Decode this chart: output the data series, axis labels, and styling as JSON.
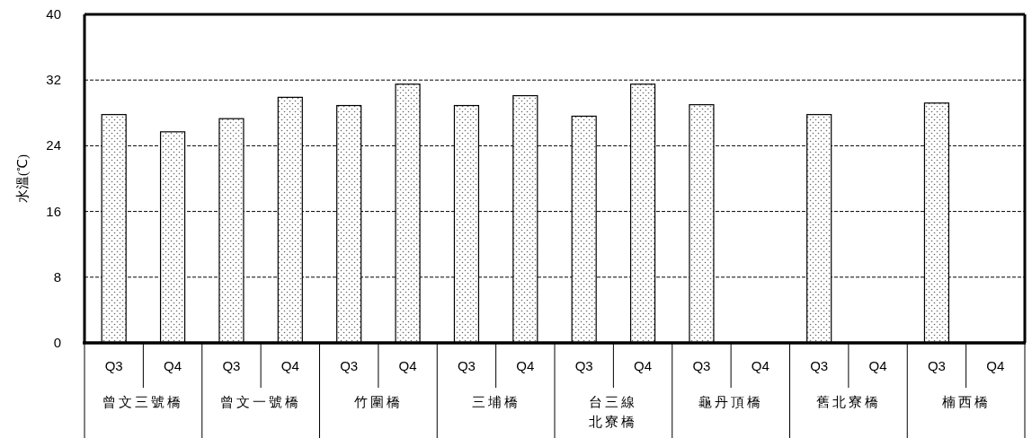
{
  "chart_data": {
    "type": "bar",
    "ylabel": "水溫(℃)",
    "categories": [
      "Q3",
      "Q4",
      "Q3",
      "Q4",
      "Q3",
      "Q4",
      "Q3",
      "Q4",
      "Q3",
      "Q4",
      "Q3",
      "Q4",
      "Q3",
      "Q4",
      "Q3",
      "Q4"
    ],
    "series": [
      {
        "color": "#000000",
        "values": [
          27.8,
          25.7,
          27.3,
          29.9,
          28.9,
          31.5,
          28.9,
          30.1,
          27.6,
          31.5,
          29.0,
          null,
          27.8,
          null,
          29.2,
          null
        ]
      }
    ],
    "annotations": [
      "曾文三號橋",
      "曾文一號橋",
      "竹圍橋",
      "三埔橋",
      "台三線北寮橋",
      "龜丹頂橋",
      "舊北寮橋",
      "楠西橋"
    ],
    "ylim": [
      0,
      40
    ],
    "yticks": [
      0,
      8,
      16,
      24,
      32,
      40
    ],
    "grid": "y"
  }
}
